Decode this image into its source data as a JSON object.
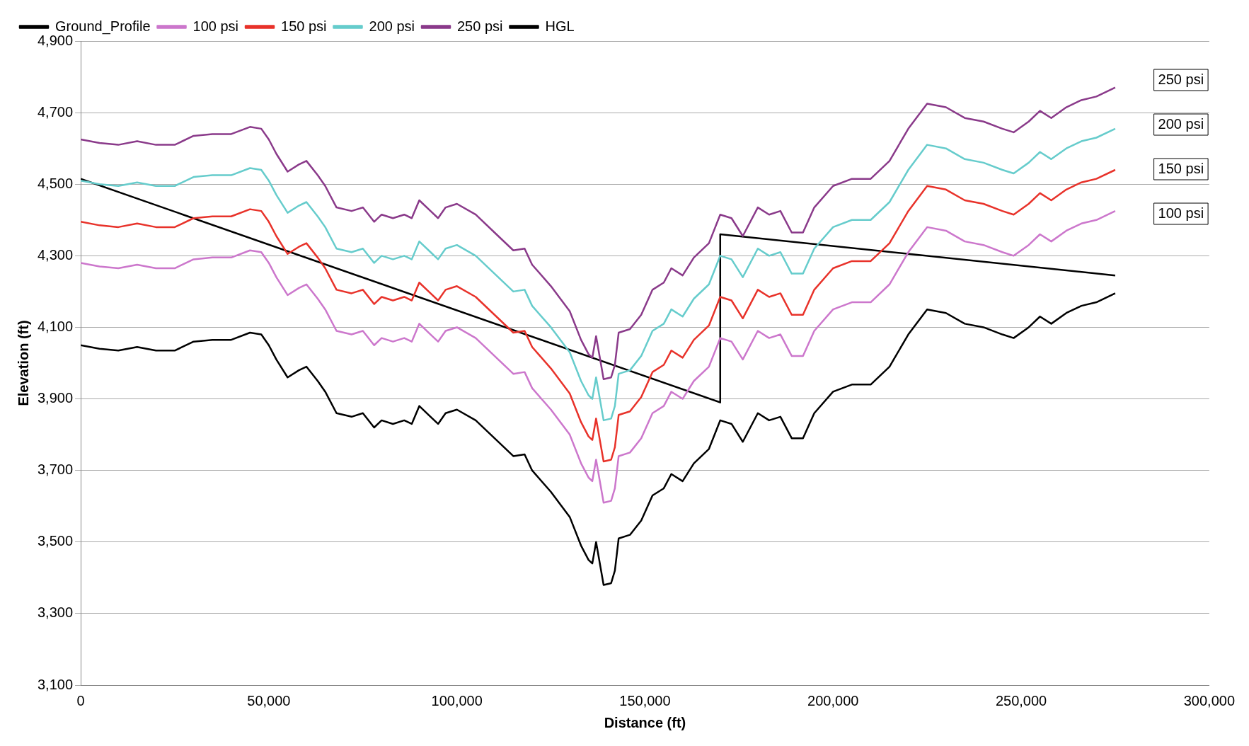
{
  "chart_data": {
    "type": "line",
    "xlabel": "Distance (ft)",
    "ylabel": "Elevation (ft)",
    "x": [
      0,
      5000,
      10000,
      15000,
      20000,
      25000,
      30000,
      35000,
      40000,
      45000,
      48000,
      50000,
      52000,
      55000,
      58000,
      60000,
      63000,
      65000,
      68000,
      72000,
      75000,
      78000,
      80000,
      83000,
      86000,
      88000,
      90000,
      93000,
      95000,
      97000,
      100000,
      105000,
      110000,
      115000,
      118000,
      120000,
      125000,
      130000,
      133000,
      135000,
      136000,
      137000,
      139000,
      141000,
      142000,
      143000,
      146000,
      149000,
      152000,
      155000,
      157000,
      160000,
      163000,
      167000,
      170000,
      173000,
      176000,
      180000,
      183000,
      186000,
      189000,
      192000,
      195000,
      200000,
      205000,
      210000,
      215000,
      220000,
      225000,
      230000,
      235000,
      240000,
      245000,
      248000,
      252000,
      255000,
      258000,
      262000,
      266000,
      270000,
      275000
    ],
    "series": [
      {
        "name": "Ground_Profile",
        "color": "#000000",
        "values": [
          4050,
          4040,
          4035,
          4045,
          4035,
          4035,
          4060,
          4065,
          4065,
          4085,
          4080,
          4050,
          4010,
          3960,
          3980,
          3990,
          3950,
          3920,
          3860,
          3850,
          3860,
          3820,
          3840,
          3830,
          3840,
          3830,
          3880,
          3850,
          3830,
          3860,
          3870,
          3840,
          3790,
          3740,
          3745,
          3700,
          3640,
          3570,
          3490,
          3450,
          3440,
          3500,
          3380,
          3385,
          3420,
          3510,
          3520,
          3560,
          3630,
          3650,
          3690,
          3670,
          3720,
          3760,
          3840,
          3830,
          3780,
          3860,
          3840,
          3850,
          3790,
          3790,
          3860,
          3920,
          3940,
          3940,
          3990,
          4080,
          4150,
          4140,
          4110,
          4100,
          4080,
          4070,
          4100,
          4130,
          4110,
          4140,
          4160,
          4170,
          4195
        ]
      },
      {
        "name": "100 psi",
        "color": "#cc77cc",
        "values": [
          4280,
          4270,
          4265,
          4275,
          4265,
          4265,
          4290,
          4295,
          4295,
          4315,
          4310,
          4280,
          4240,
          4190,
          4210,
          4220,
          4180,
          4150,
          4090,
          4080,
          4090,
          4050,
          4070,
          4060,
          4070,
          4060,
          4110,
          4080,
          4060,
          4090,
          4100,
          4070,
          4020,
          3970,
          3975,
          3930,
          3870,
          3800,
          3720,
          3680,
          3670,
          3730,
          3610,
          3615,
          3650,
          3740,
          3750,
          3790,
          3860,
          3880,
          3920,
          3900,
          3950,
          3990,
          4070,
          4060,
          4010,
          4090,
          4070,
          4080,
          4020,
          4020,
          4090,
          4150,
          4170,
          4170,
          4220,
          4310,
          4380,
          4370,
          4340,
          4330,
          4310,
          4300,
          4330,
          4360,
          4340,
          4370,
          4390,
          4400,
          4425
        ]
      },
      {
        "name": "150 psi",
        "color": "#e8322a",
        "values": [
          4395,
          4385,
          4380,
          4390,
          4380,
          4380,
          4405,
          4410,
          4410,
          4430,
          4425,
          4395,
          4355,
          4305,
          4325,
          4335,
          4295,
          4265,
          4205,
          4195,
          4205,
          4165,
          4185,
          4175,
          4185,
          4175,
          4225,
          4195,
          4175,
          4205,
          4215,
          4185,
          4135,
          4085,
          4090,
          4045,
          3985,
          3915,
          3835,
          3795,
          3785,
          3845,
          3725,
          3730,
          3765,
          3855,
          3865,
          3905,
          3975,
          3995,
          4035,
          4015,
          4065,
          4105,
          4185,
          4175,
          4125,
          4205,
          4185,
          4195,
          4135,
          4135,
          4205,
          4265,
          4285,
          4285,
          4335,
          4425,
          4495,
          4485,
          4455,
          4445,
          4425,
          4415,
          4445,
          4475,
          4455,
          4485,
          4505,
          4515,
          4540
        ]
      },
      {
        "name": "200 psi",
        "color": "#66cccc",
        "values": [
          4510,
          4500,
          4495,
          4505,
          4495,
          4495,
          4520,
          4525,
          4525,
          4545,
          4540,
          4510,
          4470,
          4420,
          4440,
          4450,
          4410,
          4380,
          4320,
          4310,
          4320,
          4280,
          4300,
          4290,
          4300,
          4290,
          4340,
          4310,
          4290,
          4320,
          4330,
          4300,
          4250,
          4200,
          4205,
          4160,
          4100,
          4030,
          3950,
          3910,
          3900,
          3960,
          3840,
          3845,
          3880,
          3970,
          3980,
          4020,
          4090,
          4110,
          4150,
          4130,
          4180,
          4220,
          4300,
          4290,
          4240,
          4320,
          4300,
          4310,
          4250,
          4250,
          4320,
          4380,
          4400,
          4400,
          4450,
          4540,
          4610,
          4600,
          4570,
          4560,
          4540,
          4530,
          4560,
          4590,
          4570,
          4600,
          4620,
          4630,
          4655
        ]
      },
      {
        "name": "250 psi",
        "color": "#8a3a8a",
        "values": [
          4625,
          4615,
          4610,
          4620,
          4610,
          4610,
          4635,
          4640,
          4640,
          4660,
          4655,
          4625,
          4585,
          4535,
          4555,
          4565,
          4525,
          4495,
          4435,
          4425,
          4435,
          4395,
          4415,
          4405,
          4415,
          4405,
          4455,
          4425,
          4405,
          4435,
          4445,
          4415,
          4365,
          4315,
          4320,
          4275,
          4215,
          4145,
          4065,
          4025,
          4015,
          4075,
          3955,
          3960,
          3995,
          4085,
          4095,
          4135,
          4205,
          4225,
          4265,
          4245,
          4295,
          4335,
          4415,
          4405,
          4355,
          4435,
          4415,
          4425,
          4365,
          4365,
          4435,
          4495,
          4515,
          4515,
          4565,
          4655,
          4725,
          4715,
          4685,
          4675,
          4655,
          4645,
          4675,
          4705,
          4685,
          4715,
          4735,
          4745,
          4770
        ]
      },
      {
        "name": "HGL",
        "color": "#000000",
        "x": [
          0,
          170000,
          170000,
          275000
        ],
        "values": [
          4515,
          3890,
          4360,
          4245
        ]
      }
    ],
    "xlim": [
      0,
      300000
    ],
    "xticks": [
      0,
      {
        "value": 50000,
        "label": "50,000"
      },
      {
        "value": 100000,
        "label": "100,000"
      },
      {
        "value": 150000,
        "label": "150,000"
      },
      {
        "value": 200000,
        "label": "200,000"
      },
      {
        "value": 250000,
        "label": "250,000"
      },
      {
        "value": 300000,
        "label": "300,000"
      }
    ],
    "ylim": [
      3100,
      4900
    ],
    "yticks": [
      {
        "value": 3100,
        "label": "3,100"
      },
      {
        "value": 3300,
        "label": "3,300"
      },
      {
        "value": 3500,
        "label": "3,500"
      },
      {
        "value": 3700,
        "label": "3,700"
      },
      {
        "value": 3900,
        "label": "3,900"
      },
      {
        "value": 4100,
        "label": "4,100"
      },
      {
        "value": 4300,
        "label": "4,300"
      },
      {
        "value": 4500,
        "label": "4,500"
      },
      {
        "value": 4700,
        "label": "4,700"
      },
      {
        "value": 4900,
        "label": "4,900"
      }
    ],
    "annotations": [
      "250 psi",
      "200 psi",
      "150 psi",
      "100 psi"
    ],
    "grid": "y",
    "legend": "top left",
    "marker": "none",
    "line_style": "solid"
  }
}
